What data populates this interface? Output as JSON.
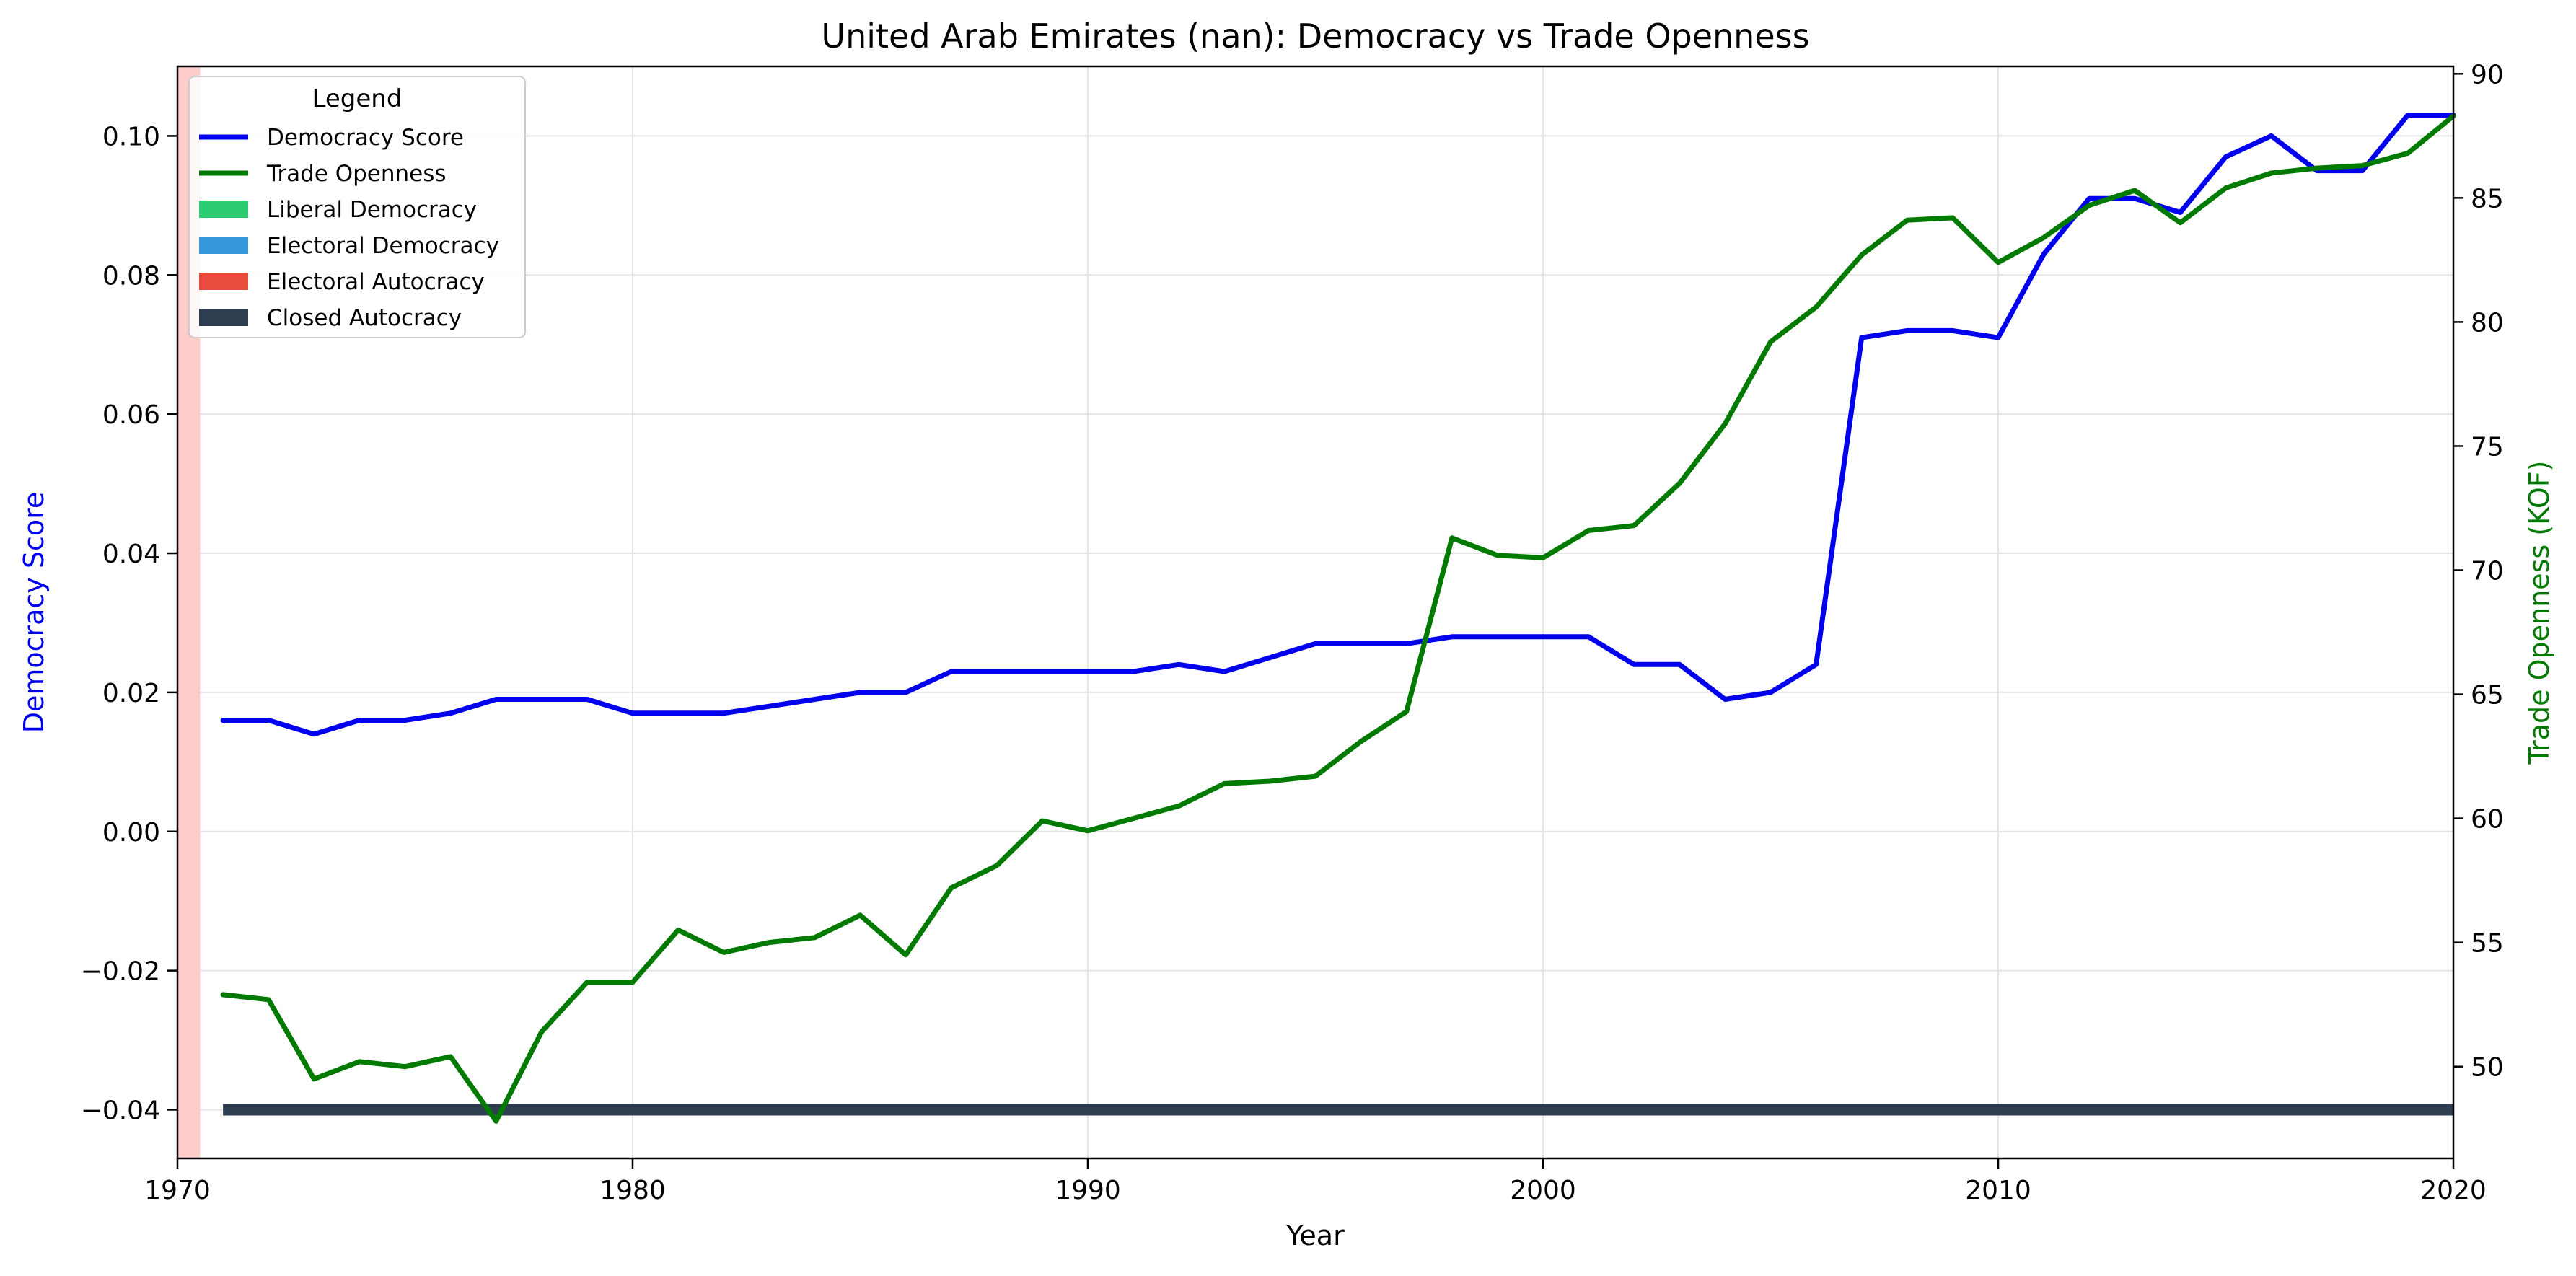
{
  "chart_data": {
    "type": "line",
    "title": "United Arab Emirates (nan): Democracy vs Trade Openness",
    "xlabel": "Year",
    "ylabel_left": "Democracy Score",
    "ylabel_right": "Trade Openness (KOF)",
    "xlim": [
      1970,
      2020
    ],
    "ylim_left": [
      -0.047,
      0.11
    ],
    "ylim_right": [
      46.3,
      90.3
    ],
    "x_ticks": [
      1970,
      1980,
      1990,
      2000,
      2010,
      2020
    ],
    "y_left_ticks": [
      -0.04,
      -0.02,
      0.0,
      0.02,
      0.04,
      0.06,
      0.08,
      0.1
    ],
    "y_left_tick_labels": [
      "−0.04",
      "−0.02",
      "0.00",
      "0.02",
      "0.04",
      "0.06",
      "0.08",
      "0.10"
    ],
    "y_right_ticks": [
      50,
      55,
      60,
      65,
      70,
      75,
      80,
      85,
      90
    ],
    "grid": true,
    "legend": {
      "title": "Legend",
      "position": "top-left",
      "entries": [
        {
          "label": "Democracy Score",
          "kind": "line",
          "color": "#0000ee"
        },
        {
          "label": "Trade Openness",
          "kind": "line",
          "color": "#007a00"
        },
        {
          "label": "Liberal Democracy",
          "kind": "patch",
          "color": "#2ecc71"
        },
        {
          "label": "Electoral Democracy",
          "kind": "patch",
          "color": "#3498db"
        },
        {
          "label": "Electoral Autocracy",
          "kind": "patch",
          "color": "#e74c3c"
        },
        {
          "label": "Closed Autocracy",
          "kind": "patch",
          "color": "#2c3e50"
        }
      ]
    },
    "series": [
      {
        "name": "Democracy Score",
        "axis": "left",
        "color": "#0000ee",
        "x": [
          1971,
          1972,
          1973,
          1974,
          1975,
          1976,
          1977,
          1978,
          1979,
          1980,
          1981,
          1982,
          1983,
          1984,
          1985,
          1986,
          1987,
          1988,
          1989,
          1990,
          1991,
          1992,
          1993,
          1994,
          1995,
          1996,
          1997,
          1998,
          1999,
          2000,
          2001,
          2002,
          2003,
          2004,
          2005,
          2006,
          2007,
          2008,
          2009,
          2010,
          2011,
          2012,
          2013,
          2014,
          2015,
          2016,
          2017,
          2018,
          2019,
          2020
        ],
        "values": [
          0.016,
          0.016,
          0.014,
          0.016,
          0.016,
          0.017,
          0.019,
          0.019,
          0.019,
          0.017,
          0.017,
          0.017,
          0.018,
          0.019,
          0.02,
          0.02,
          0.023,
          0.023,
          0.023,
          0.023,
          0.023,
          0.024,
          0.023,
          0.025,
          0.027,
          0.027,
          0.027,
          0.028,
          0.028,
          0.028,
          0.028,
          0.024,
          0.024,
          0.019,
          0.02,
          0.024,
          0.071,
          0.072,
          0.072,
          0.071,
          0.083,
          0.091,
          0.091,
          0.089,
          0.097,
          0.1,
          0.095,
          0.095,
          0.103,
          0.103
        ]
      },
      {
        "name": "Trade Openness",
        "axis": "right",
        "color": "#007a00",
        "x": [
          1971,
          1972,
          1973,
          1974,
          1975,
          1976,
          1977,
          1978,
          1979,
          1980,
          1981,
          1982,
          1983,
          1984,
          1985,
          1986,
          1987,
          1988,
          1989,
          1990,
          1991,
          1992,
          1993,
          1994,
          1995,
          1996,
          1997,
          1998,
          1999,
          2000,
          2001,
          2002,
          2003,
          2004,
          2005,
          2006,
          2007,
          2008,
          2009,
          2010,
          2011,
          2012,
          2013,
          2014,
          2015,
          2016,
          2017,
          2018,
          2019,
          2020
        ],
        "values": [
          52.9,
          52.7,
          49.5,
          50.2,
          50.0,
          50.4,
          47.8,
          51.4,
          53.4,
          53.4,
          55.5,
          54.6,
          55.0,
          55.2,
          56.1,
          54.5,
          57.2,
          58.1,
          59.9,
          59.5,
          60.0,
          60.5,
          61.4,
          61.5,
          61.7,
          63.1,
          64.3,
          71.3,
          70.6,
          70.5,
          71.6,
          71.8,
          73.5,
          75.9,
          79.2,
          80.6,
          82.7,
          84.1,
          84.2,
          82.4,
          83.4,
          84.7,
          85.3,
          84.0,
          85.4,
          86.0,
          86.2,
          86.3,
          86.8,
          88.3
        ]
      }
    ],
    "regime_bands": [
      {
        "regime": "Closed Autocracy",
        "x_start": 1971,
        "x_end": 2020,
        "y": -0.04,
        "color": "#2c3e50"
      }
    ],
    "highlight_span": {
      "x_start": 1970,
      "x_end": 1970.5,
      "color": "#ffcccc"
    }
  }
}
